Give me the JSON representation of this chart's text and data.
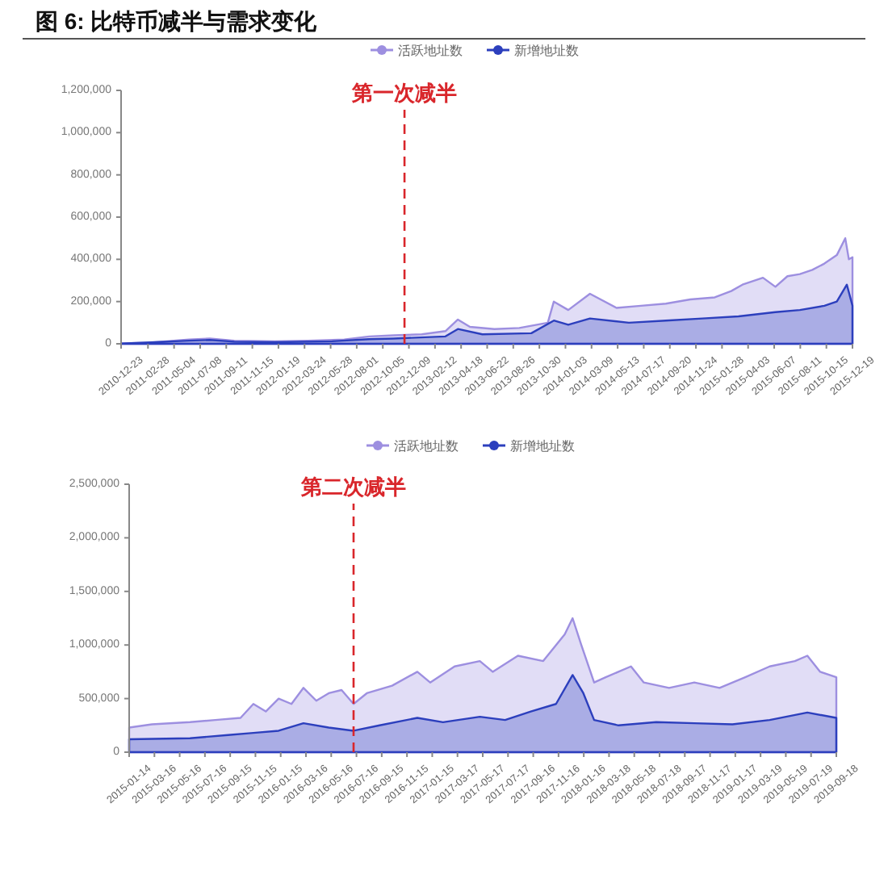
{
  "chart_data": [
    {
      "type": "area",
      "title": "图 6: 比特币减半与需求变化",
      "legend": "top",
      "grid": false,
      "marker": "none",
      "xlim": [
        "2010-12-23",
        "2015-12-19"
      ],
      "xticks": [
        {
          "value": "2010-12-23",
          "label": "2010-12-23"
        },
        {
          "value": "2011-02-28",
          "label": "2011-02-28"
        },
        {
          "value": "2011-05-04",
          "label": "2011-05-04"
        },
        {
          "value": "2011-07-08",
          "label": "2011-07-08"
        },
        {
          "value": "2011-09-11",
          "label": "2011-09-11"
        },
        {
          "value": "2011-11-15",
          "label": "2011-11-15"
        },
        {
          "value": "2012-01-19",
          "label": "2012-01-19"
        },
        {
          "value": "2012-03-24",
          "label": "2012-03-24"
        },
        {
          "value": "2012-05-28",
          "label": "2012-05-28"
        },
        {
          "value": "2012-08-01",
          "label": "2012-08-01"
        },
        {
          "value": "2012-10-05",
          "label": "2012-10-05"
        },
        {
          "value": "2012-12-09",
          "label": "2012-12-09"
        },
        {
          "value": "2013-02-12",
          "label": "2013-02-12"
        },
        {
          "value": "2013-04-18",
          "label": "2013-04-18"
        },
        {
          "value": "2013-06-22",
          "label": "2013-06-22"
        },
        {
          "value": "2013-08-26",
          "label": "2013-08-26"
        },
        {
          "value": "2013-10-30",
          "label": "2013-10-30"
        },
        {
          "value": "2014-01-03",
          "label": "2014-01-03"
        },
        {
          "value": "2014-03-09",
          "label": "2014-03-09"
        },
        {
          "value": "2014-05-13",
          "label": "2014-05-13"
        },
        {
          "value": "2014-07-17",
          "label": "2014-07-17"
        },
        {
          "value": "2014-09-20",
          "label": "2014-09-20"
        },
        {
          "value": "2014-11-24",
          "label": "2014-11-24"
        },
        {
          "value": "2015-01-28",
          "label": "2015-01-28"
        },
        {
          "value": "2015-04-03",
          "label": "2015-04-03"
        },
        {
          "value": "2015-06-07",
          "label": "2015-06-07"
        },
        {
          "value": "2015-08-11",
          "label": "2015-08-11"
        },
        {
          "value": "2015-10-15",
          "label": "2015-10-15"
        },
        {
          "value": "2015-12-19",
          "label": "2015-12-19"
        }
      ],
      "ylim": [
        0,
        1200000
      ],
      "yticks": [
        0,
        {
          "value": 200000,
          "label": "200,000"
        },
        {
          "value": 400000,
          "label": "400,000"
        },
        {
          "value": 600000,
          "label": "600,000"
        },
        {
          "value": 800000,
          "label": "800,000"
        },
        {
          "value": 1000000,
          "label": "1,000,000"
        },
        {
          "value": 1200000,
          "label": "1,200,000"
        }
      ],
      "ref_lines": [
        {
          "axis": "x",
          "value": "2012-11-28",
          "label": "第一次减半",
          "color": "#d9262b",
          "line_style": "dashed"
        }
      ],
      "series": [
        {
          "name": "活跃地址数",
          "color": "#9d8fe0",
          "x": [
            "2010-12-23",
            "2011-03-01",
            "2011-06-10",
            "2011-08-01",
            "2011-10-01",
            "2012-01-10",
            "2012-04-01",
            "2012-07-01",
            "2012-09-01",
            "2012-11-01",
            "2013-01-10",
            "2013-03-10",
            "2013-04-10",
            "2013-05-10",
            "2013-07-10",
            "2013-09-10",
            "2013-11-20",
            "2013-12-05",
            "2014-01-10",
            "2014-03-05",
            "2014-05-10",
            "2014-07-10",
            "2014-09-10",
            "2014-11-10",
            "2015-01-10",
            "2015-02-20",
            "2015-03-20",
            "2015-05-10",
            "2015-06-10",
            "2015-07-10",
            "2015-08-10",
            "2015-09-10",
            "2015-10-10",
            "2015-11-10",
            "2015-12-01",
            "2015-12-10",
            "2015-12-19"
          ],
          "values": [
            2000,
            5000,
            20000,
            25000,
            15000,
            12000,
            15000,
            20000,
            35000,
            40000,
            45000,
            60000,
            115000,
            80000,
            70000,
            75000,
            100000,
            200000,
            160000,
            237000,
            170000,
            180000,
            190000,
            210000,
            220000,
            250000,
            280000,
            313000,
            270000,
            320000,
            330000,
            350000,
            380000,
            420000,
            500000,
            400000,
            410000
          ]
        },
        {
          "name": "新增地址数",
          "color": "#2c3fbd",
          "x": [
            "2010-12-23",
            "2011-06-10",
            "2011-08-01",
            "2011-10-01",
            "2012-01-10",
            "2012-06-01",
            "2012-09-01",
            "2012-11-01",
            "2013-03-10",
            "2013-04-10",
            "2013-06-10",
            "2013-10-10",
            "2013-12-05",
            "2014-01-10",
            "2014-03-05",
            "2014-06-10",
            "2014-09-10",
            "2014-12-10",
            "2015-03-10",
            "2015-06-10",
            "2015-08-10",
            "2015-10-10",
            "2015-11-10",
            "2015-12-05",
            "2015-12-19"
          ],
          "values": [
            1000,
            15000,
            18000,
            10000,
            8000,
            12000,
            22000,
            25000,
            35000,
            70000,
            45000,
            50000,
            110000,
            90000,
            120000,
            100000,
            110000,
            120000,
            130000,
            150000,
            160000,
            180000,
            200000,
            280000,
            180000
          ]
        }
      ]
    },
    {
      "type": "area",
      "legend": "top",
      "grid": false,
      "marker": "none",
      "xlim": [
        "2015-01-14",
        "2019-09-18"
      ],
      "xticks": [
        {
          "value": "2015-01-14",
          "label": "2015-01-14"
        },
        {
          "value": "2015-03-16",
          "label": "2015-03-16"
        },
        {
          "value": "2015-05-16",
          "label": "2015-05-16"
        },
        {
          "value": "2015-07-16",
          "label": "2015-07-16"
        },
        {
          "value": "2015-09-15",
          "label": "2015-09-15"
        },
        {
          "value": "2015-11-15",
          "label": "2015-11-15"
        },
        {
          "value": "2016-01-15",
          "label": "2016-01-15"
        },
        {
          "value": "2016-03-16",
          "label": "2016-03-16"
        },
        {
          "value": "2016-05-16",
          "label": "2016-05-16"
        },
        {
          "value": "2016-07-16",
          "label": "2016-07-16"
        },
        {
          "value": "2016-09-15",
          "label": "2016-09-15"
        },
        {
          "value": "2016-11-15",
          "label": "2016-11-15"
        },
        {
          "value": "2017-01-15",
          "label": "2017-01-15"
        },
        {
          "value": "2017-03-17",
          "label": "2017-03-17"
        },
        {
          "value": "2017-05-17",
          "label": "2017-05-17"
        },
        {
          "value": "2017-07-17",
          "label": "2017-07-17"
        },
        {
          "value": "2017-09-16",
          "label": "2017-09-16"
        },
        {
          "value": "2017-11-16",
          "label": "2017-11-16"
        },
        {
          "value": "2018-01-16",
          "label": "2018-01-16"
        },
        {
          "value": "2018-03-18",
          "label": "2018-03-18"
        },
        {
          "value": "2018-05-18",
          "label": "2018-05-18"
        },
        {
          "value": "2018-07-18",
          "label": "2018-07-18"
        },
        {
          "value": "2018-09-17",
          "label": "2018-09-17"
        },
        {
          "value": "2018-11-17",
          "label": "2018-11-17"
        },
        {
          "value": "2019-01-17",
          "label": "2019-01-17"
        },
        {
          "value": "2019-03-19",
          "label": "2019-03-19"
        },
        {
          "value": "2019-05-19",
          "label": "2019-05-19"
        },
        {
          "value": "2019-07-19",
          "label": "2019-07-19"
        },
        {
          "value": "2019-09-18",
          "label": "2019-09-18"
        }
      ],
      "ylim": [
        0,
        2500000
      ],
      "yticks": [
        0,
        {
          "value": 500000,
          "label": "500,000"
        },
        {
          "value": 1000000,
          "label": "1,000,000"
        },
        {
          "value": 1500000,
          "label": "1,500,000"
        },
        {
          "value": 2000000,
          "label": "2,000,000"
        },
        {
          "value": 2500000,
          "label": "2,500,000"
        }
      ],
      "ref_lines": [
        {
          "axis": "x",
          "value": "2016-07-09",
          "label": "第二次减半",
          "color": "#d9262b",
          "line_style": "dashed"
        }
      ],
      "series": [
        {
          "name": "活跃地址数",
          "color": "#9d8fe0",
          "x": [
            "2015-01-14",
            "2015-03-10",
            "2015-06-10",
            "2015-08-10",
            "2015-10-10",
            "2015-11-10",
            "2015-12-10",
            "2016-01-10",
            "2016-02-10",
            "2016-03-10",
            "2016-04-10",
            "2016-05-10",
            "2016-06-10",
            "2016-07-09",
            "2016-08-10",
            "2016-10-10",
            "2016-12-10",
            "2017-01-10",
            "2017-03-10",
            "2017-05-10",
            "2017-06-10",
            "2017-08-10",
            "2017-10-10",
            "2017-12-01",
            "2017-12-20",
            "2018-01-10",
            "2018-02-10",
            "2018-03-10",
            "2018-05-10",
            "2018-06-10",
            "2018-08-10",
            "2018-10-10",
            "2018-12-10",
            "2019-02-10",
            "2019-04-10",
            "2019-06-10",
            "2019-07-10",
            "2019-08-10",
            "2019-09-18"
          ],
          "values": [
            230000,
            260000,
            280000,
            300000,
            320000,
            450000,
            380000,
            500000,
            450000,
            600000,
            480000,
            550000,
            580000,
            450000,
            550000,
            620000,
            750000,
            650000,
            800000,
            850000,
            750000,
            900000,
            850000,
            1100000,
            1250000,
            1000000,
            650000,
            700000,
            800000,
            650000,
            600000,
            650000,
            600000,
            700000,
            800000,
            850000,
            900000,
            750000,
            700000
          ]
        },
        {
          "name": "新增地址数",
          "color": "#2c3fbd",
          "x": [
            "2015-01-14",
            "2015-06-10",
            "2015-09-10",
            "2015-11-10",
            "2016-01-10",
            "2016-03-10",
            "2016-05-10",
            "2016-07-09",
            "2016-09-10",
            "2016-12-10",
            "2017-02-10",
            "2017-05-10",
            "2017-07-10",
            "2017-09-10",
            "2017-11-10",
            "2017-12-20",
            "2018-01-15",
            "2018-02-10",
            "2018-04-10",
            "2018-07-10",
            "2018-10-10",
            "2019-01-10",
            "2019-04-10",
            "2019-07-10",
            "2019-09-18"
          ],
          "values": [
            120000,
            130000,
            160000,
            180000,
            200000,
            270000,
            230000,
            200000,
            250000,
            320000,
            280000,
            330000,
            300000,
            380000,
            450000,
            720000,
            550000,
            300000,
            250000,
            280000,
            270000,
            260000,
            300000,
            370000,
            320000
          ]
        }
      ]
    }
  ]
}
